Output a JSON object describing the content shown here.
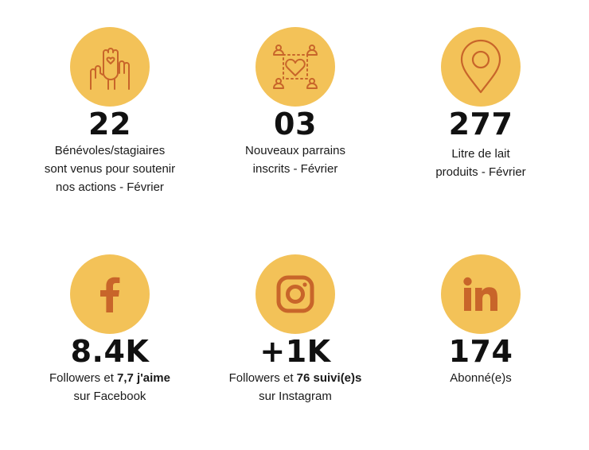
{
  "colors": {
    "circle": "#F3C258",
    "icon": "#C8652A",
    "text": "#111111"
  },
  "stats": [
    {
      "icon": "raised-hands-heart-icon",
      "value": "22",
      "lines": [
        "Bénévoles/stagiaires",
        "sont venus pour soutenir",
        "nos actions - Février"
      ]
    },
    {
      "icon": "people-heart-network-icon",
      "value": "03",
      "lines": [
        "Nouveaux parrains",
        "inscrits - Février"
      ]
    },
    {
      "icon": "map-pin-icon",
      "value": "277",
      "lines": [
        "Litre de lait",
        "produits - Février"
      ]
    },
    {
      "icon": "facebook-icon",
      "value": "8.4K",
      "line1_pre": "Followers et ",
      "line1_bold": "7,7 j'aime",
      "line2": "sur Facebook"
    },
    {
      "icon": "instagram-icon",
      "value": "+1K",
      "line1_pre": "Followers et ",
      "line1_bold": "76 suivi(e)s",
      "line2": "sur Instagram"
    },
    {
      "icon": "linkedin-icon",
      "value": "174",
      "lines": [
        "Abonné(e)s"
      ]
    }
  ]
}
